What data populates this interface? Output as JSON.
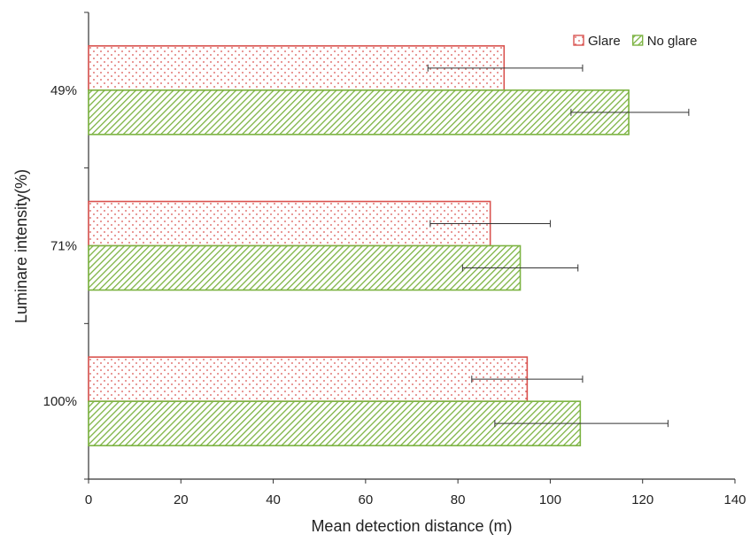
{
  "chart_data": {
    "type": "bar",
    "orientation": "horizontal",
    "title": "",
    "xlabel": "Mean detection distance (m)",
    "ylabel": "Luminare intensity(%)",
    "categories": [
      "49%",
      "71%",
      "100%"
    ],
    "series": [
      {
        "name": "Glare",
        "values": [
          90,
          87,
          95
        ],
        "error_low": [
          73.5,
          74,
          83
        ],
        "error_high": [
          107,
          100,
          107
        ],
        "color": "#d9534f",
        "pattern": "dots"
      },
      {
        "name": "No glare",
        "values": [
          117,
          93.5,
          106.5
        ],
        "error_low": [
          104.5,
          81,
          88
        ],
        "error_high": [
          130,
          106,
          125.5
        ],
        "color": "#7cb342",
        "pattern": "diagonal-hatch"
      }
    ],
    "xlim": [
      0,
      140
    ],
    "xticks": [
      "0",
      "20",
      "40",
      "60",
      "80",
      "100",
      "120",
      "140"
    ],
    "grid": false,
    "legend_position": "top-right"
  }
}
